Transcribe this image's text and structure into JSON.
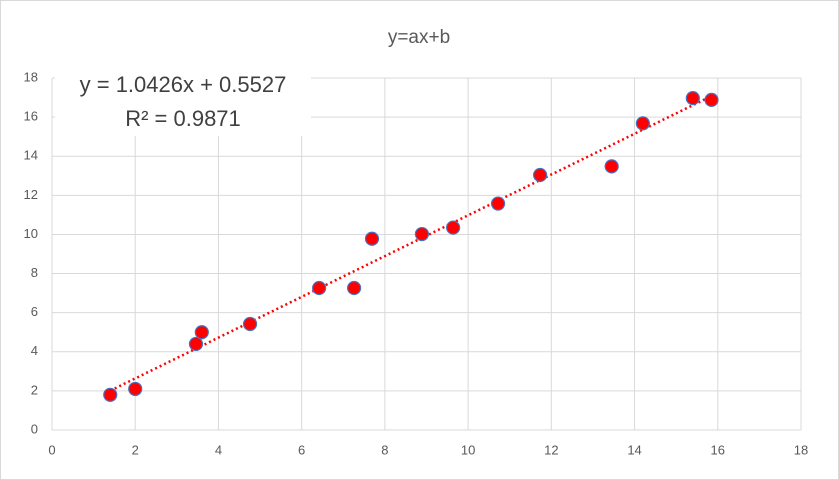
{
  "chart_data": {
    "type": "scatter",
    "title": "y=ax+b",
    "x": [
      1.4,
      2.0,
      3.46,
      3.6,
      4.76,
      6.42,
      7.26,
      7.69,
      8.89,
      9.64,
      10.72,
      11.73,
      13.45,
      14.2,
      15.4,
      15.85
    ],
    "values": [
      1.8,
      2.1,
      4.4,
      5.0,
      5.42,
      7.26,
      7.26,
      9.78,
      10.02,
      10.35,
      11.58,
      13.04,
      13.48,
      15.68,
      16.97,
      16.88
    ],
    "color": "#ff0000",
    "edge_color": "#4472c4",
    "xlim": [
      0,
      18
    ],
    "xticks": [
      0,
      2,
      4,
      6,
      8,
      10,
      12,
      14,
      16,
      18
    ],
    "ylim": [
      0,
      18
    ],
    "yticks": [
      0,
      2,
      4,
      6,
      8,
      10,
      12,
      14,
      16,
      18
    ],
    "grid": true,
    "trendline": {
      "slope": 1.0426,
      "intercept": 0.5527,
      "color": "#ff0000",
      "equation": "y = 1.0426x + 0.5527",
      "r_squared": "R² = 0.9871"
    }
  }
}
